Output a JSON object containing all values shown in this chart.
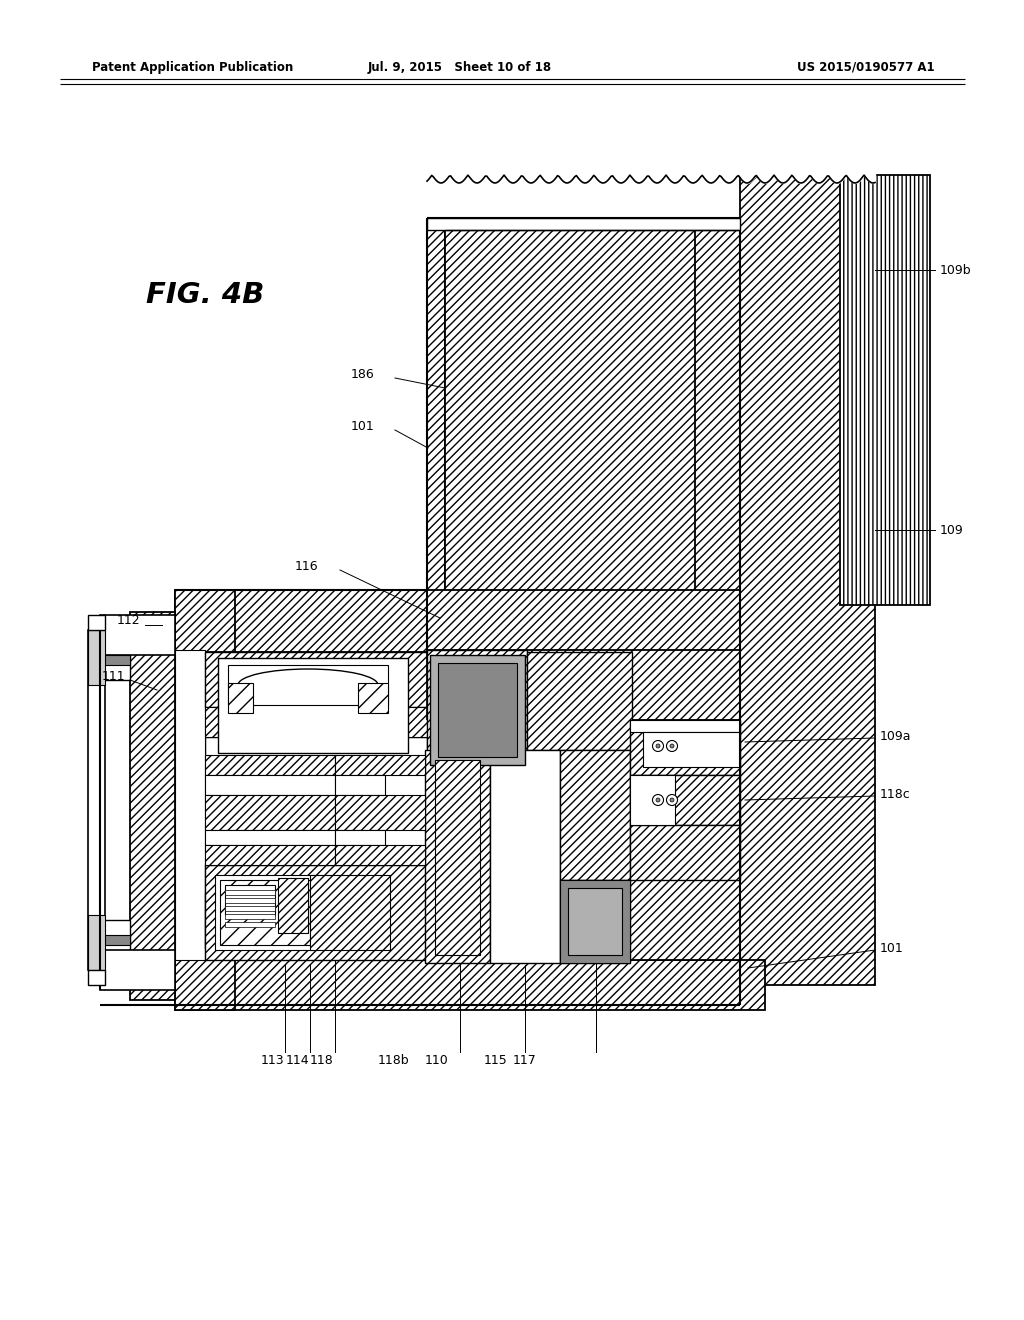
{
  "header_left": "Patent Application Publication",
  "header_mid": "Jul. 9, 2015   Sheet 10 of 18",
  "header_right": "US 2015/0190577 A1",
  "fig_label": "FIG. 4B",
  "bg_color": "#ffffff"
}
